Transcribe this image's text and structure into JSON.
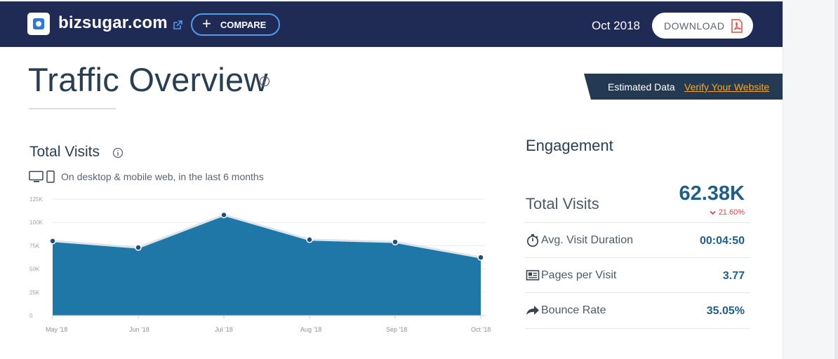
{
  "header": {
    "site_name": "bizsugar.com",
    "compare_label": "COMPARE",
    "date": "Oct 2018",
    "download_label": "DOWNLOAD"
  },
  "page": {
    "title": "Traffic Overview",
    "estimated_label": "Estimated Data",
    "verify_link": "Verify Your Website"
  },
  "total_visits": {
    "title": "Total Visits",
    "subtitle": "On desktop & mobile web, in the last 6 months"
  },
  "chart_data": {
    "type": "area",
    "categories": [
      "May '18",
      "Jun '18",
      "Jul '18",
      "Aug '18",
      "Sep '18",
      "Oct '18"
    ],
    "values": [
      80000,
      73000,
      108000,
      81500,
      79000,
      62380
    ],
    "y_ticks": [
      "0",
      "25K",
      "50K",
      "75K",
      "100K",
      "125K"
    ],
    "ylim": [
      0,
      125000
    ],
    "grid": true,
    "color": "#1f77a8"
  },
  "engagement": {
    "title": "Engagement",
    "total_visits_label": "Total Visits",
    "total_visits_value": "62.38K",
    "total_visits_change": "21.60%",
    "rows": [
      {
        "label": "Avg. Visit Duration",
        "value": "00:04:50",
        "icon": "stopwatch-icon"
      },
      {
        "label": "Pages per Visit",
        "value": "3.77",
        "icon": "pages-icon"
      },
      {
        "label": "Bounce Rate",
        "value": "35.05%",
        "icon": "bounce-arrow-icon"
      }
    ]
  },
  "colors": {
    "header_bg": "#1f2a55",
    "accent": "#4f9ee8",
    "value_blue": "#1f5f8a",
    "decline_red": "#d64b4b",
    "link_orange": "#f5a623"
  }
}
